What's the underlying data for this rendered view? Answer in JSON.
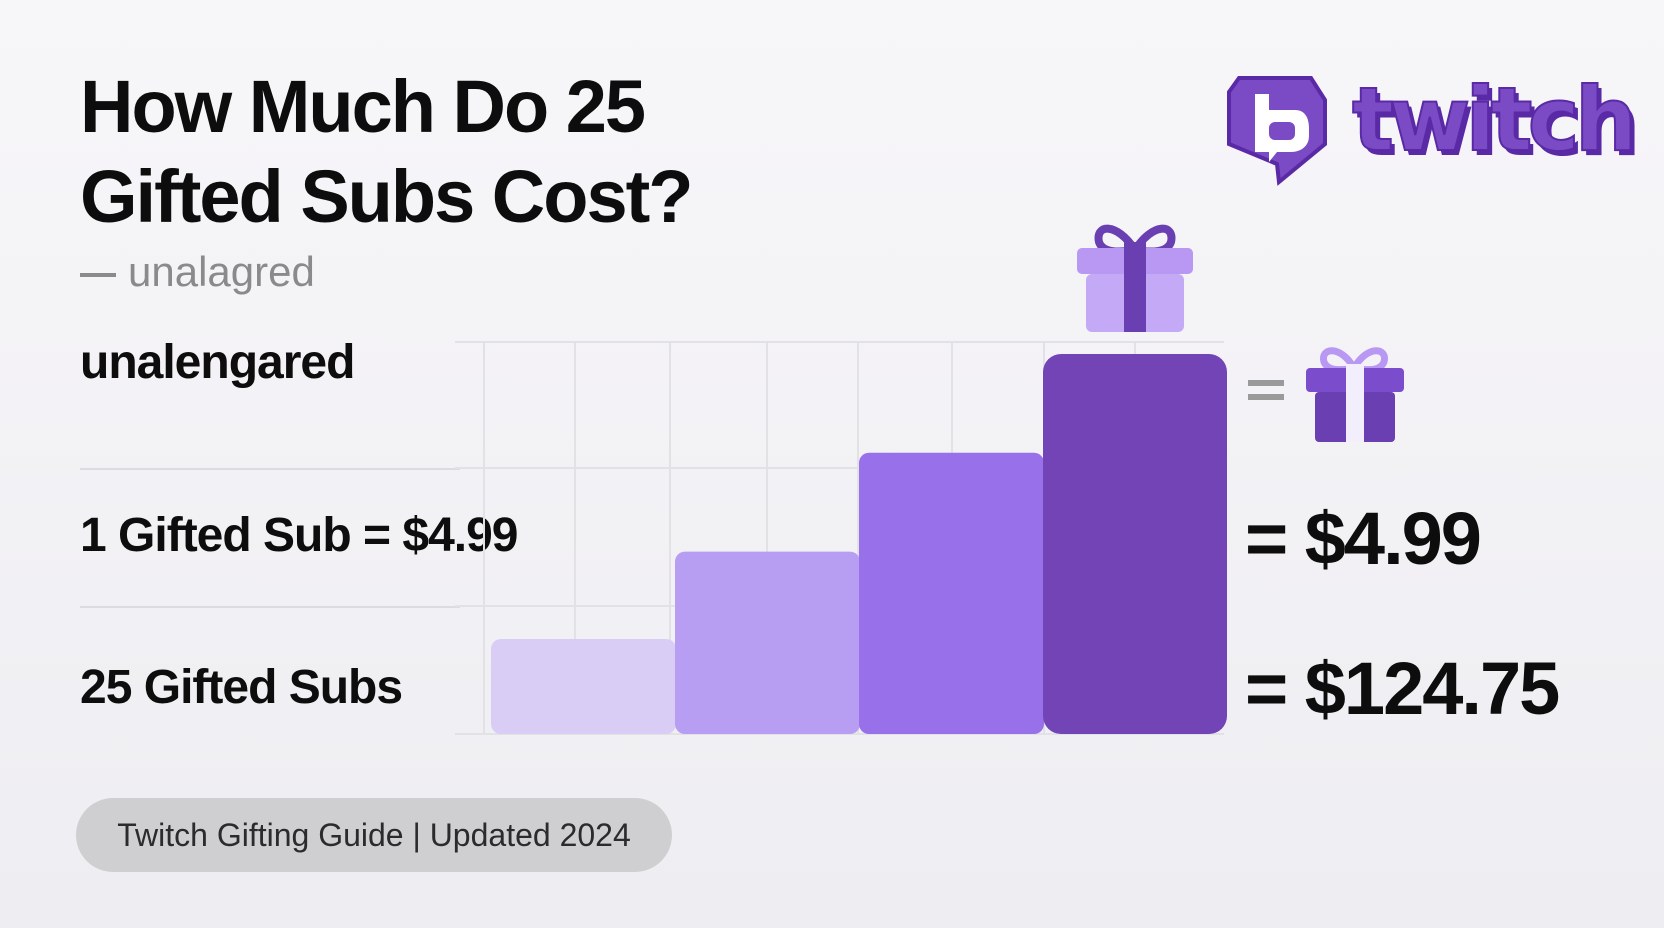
{
  "title": "How Much Do 25 Gifted Subs Cost?",
  "subtitle": "unalagred",
  "label_a": "unalengared",
  "rows": [
    {
      "label": "1 Gifted Sub = $4.99",
      "result": "= $4.99"
    },
    {
      "label": "25 Gifted Subs",
      "result": "= $124.75"
    }
  ],
  "brand": {
    "name": "twitch",
    "color": "#6441a5"
  },
  "footer": "Twitch Gifting Guide | Updated 2024",
  "icons": [
    "twitch-logo-icon",
    "gift-icon",
    "gift-icon"
  ],
  "bars": {
    "levels": [
      0.25,
      0.48,
      0.74,
      1.0
    ],
    "colors": [
      "#d9cdf6",
      "#b79ef3",
      "#9870e9",
      "#7244b6"
    ]
  }
}
